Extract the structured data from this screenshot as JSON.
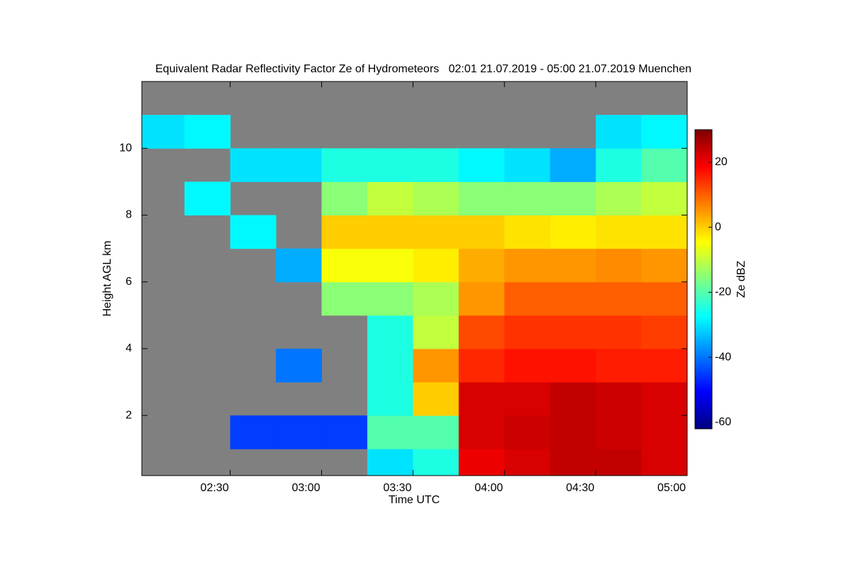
{
  "chart_data": {
    "type": "heatmap",
    "title": "Equivalent Radar Reflectivity Factor Ze of Hydrometeors   02:01 21.07.2019 - 05:00 21.07.2019 Muenchen",
    "x_label": "Time UTC",
    "y_label": "Height AGL km",
    "colorbar_label": "Ze dBZ",
    "xlim": [
      2.0167,
      5.0
    ],
    "xticks": [
      {
        "value": 2.5,
        "label": "02:30"
      },
      {
        "value": 3.0,
        "label": "03:00"
      },
      {
        "value": 3.5,
        "label": "03:30"
      },
      {
        "value": 4.0,
        "label": "04:00"
      },
      {
        "value": 4.5,
        "label": "04:30"
      },
      {
        "value": 5.0,
        "label": "05:00"
      }
    ],
    "ylim": [
      0.2,
      12
    ],
    "yticks": [
      2,
      4,
      6,
      8,
      10
    ],
    "zlim": [
      -62,
      30
    ],
    "zticks": [
      -60,
      -40,
      -20,
      0,
      20
    ],
    "colormap": [
      "#00007f",
      "#0000ff",
      "#0080ff",
      "#00ffff",
      "#80ff80",
      "#ffff00",
      "#ff8000",
      "#ff0000",
      "#7f0000"
    ],
    "x": [
      2.0167,
      2.25,
      2.5,
      2.75,
      3.0,
      3.25,
      3.5,
      3.75,
      4.0,
      4.25,
      4.5,
      4.75,
      5.0
    ],
    "y": [
      0.2,
      1,
      2,
      3,
      4,
      5,
      6,
      7,
      8,
      9,
      10,
      11,
      12
    ],
    "z": [
      [
        null,
        null,
        null,
        null,
        null,
        -30,
        -25,
        20,
        22,
        24,
        24,
        22
      ],
      [
        null,
        null,
        -45,
        -45,
        -45,
        -20,
        -20,
        22,
        23,
        24,
        23,
        22
      ],
      [
        null,
        null,
        null,
        null,
        null,
        -25,
        0,
        22,
        22,
        24,
        23,
        22
      ],
      [
        null,
        null,
        null,
        -40,
        null,
        -25,
        5,
        15,
        17,
        17,
        16,
        16
      ],
      [
        null,
        null,
        null,
        null,
        null,
        -25,
        -10,
        12,
        14,
        14,
        14,
        13
      ],
      [
        null,
        null,
        null,
        null,
        -15,
        -15,
        -12,
        5,
        10,
        10,
        10,
        10
      ],
      [
        null,
        null,
        null,
        -35,
        -5,
        -5,
        -3,
        3,
        5,
        5,
        6,
        5
      ],
      [
        null,
        null,
        -28,
        null,
        0,
        0,
        0,
        0,
        -2,
        -3,
        -2,
        -2
      ],
      [
        null,
        -28,
        null,
        null,
        -15,
        -10,
        -12,
        -15,
        -15,
        -15,
        -12,
        -10
      ],
      [
        null,
        null,
        -30,
        -30,
        -25,
        -25,
        -25,
        -28,
        -30,
        -35,
        -25,
        -20
      ],
      [
        -30,
        -28,
        null,
        null,
        null,
        null,
        null,
        null,
        null,
        null,
        -30,
        -28
      ],
      [
        null,
        null,
        null,
        null,
        null,
        null,
        null,
        null,
        null,
        null,
        null,
        null
      ]
    ]
  }
}
